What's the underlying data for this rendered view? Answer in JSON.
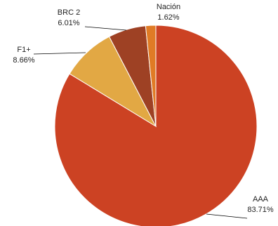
{
  "chart_data": {
    "type": "pie",
    "title": "",
    "slices": [
      {
        "label": "AAA",
        "value": 83.71,
        "label_text": "83.71%",
        "color": "#CC4223"
      },
      {
        "label": "F1+",
        "value": 8.66,
        "label_text": "8.66%",
        "color": "#E2A844"
      },
      {
        "label": "BRC 2",
        "value": 6.01,
        "label_text": "6.01%",
        "color": "#9E4124"
      },
      {
        "label": "Nación",
        "value": 1.62,
        "label_text": "1.62%",
        "color": "#E07B25"
      }
    ],
    "legend": "none",
    "data_labels": "outside-with-leader-lines"
  }
}
